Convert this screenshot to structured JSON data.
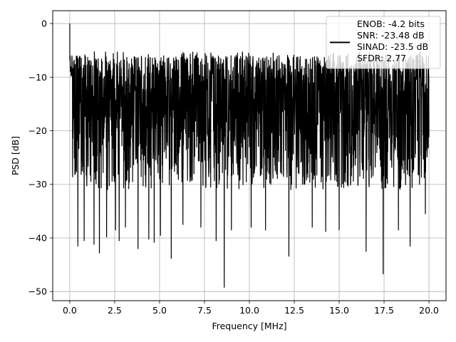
{
  "chart_data": {
    "type": "line",
    "title": "",
    "xlabel": "Frequency [MHz]",
    "ylabel": "PSD [dB]",
    "xlim": [
      -0.95,
      20.95
    ],
    "ylim": [
      -51.7,
      2.4
    ],
    "grid": true,
    "x_ticks": [
      0.0,
      2.5,
      5.0,
      7.5,
      10.0,
      12.5,
      15.0,
      17.5,
      20.0
    ],
    "x_tick_labels": [
      "0.0",
      "2.5",
      "5.0",
      "7.5",
      "10.0",
      "12.5",
      "15.0",
      "17.5",
      "20.0"
    ],
    "y_ticks": [
      0,
      -10,
      -20,
      -30,
      -40,
      -50
    ],
    "y_tick_labels": [
      "0",
      "−10",
      "−20",
      "−30",
      "−40",
      "−50"
    ],
    "legend": {
      "placement": "upper-right",
      "entries": [
        "ENOB: -4.2 bits",
        "SNR: -23.48 dB",
        "SINAD: -23.5 dB",
        "SFDR: 2.77"
      ]
    },
    "series": [
      {
        "color": "#000000",
        "x_range": [
          0,
          20
        ],
        "num_points": 2048,
        "seed": 7,
        "peak": [
          0.0,
          0.0
        ],
        "envelope": {
          "upper": -6.0,
          "median": -16.0,
          "lower": -31.0
        },
        "deep_notches": [
          [
            0.45,
            -41.5
          ],
          [
            0.8,
            -40.5
          ],
          [
            1.35,
            -41.2
          ],
          [
            1.65,
            -42.8
          ],
          [
            2.05,
            -39.8
          ],
          [
            2.55,
            -38.5
          ],
          [
            2.75,
            -40.5
          ],
          [
            3.1,
            -38.0
          ],
          [
            3.8,
            -42.0
          ],
          [
            4.4,
            -40.2
          ],
          [
            4.7,
            -40.8
          ],
          [
            5.05,
            -39.5
          ],
          [
            5.65,
            -43.8
          ],
          [
            6.3,
            -37.5
          ],
          [
            7.3,
            -38.0
          ],
          [
            8.15,
            -40.5
          ],
          [
            8.6,
            -49.2
          ],
          [
            9.0,
            -38.5
          ],
          [
            10.1,
            -38.0
          ],
          [
            10.9,
            -38.5
          ],
          [
            12.2,
            -43.4
          ],
          [
            13.5,
            -38.0
          ],
          [
            14.25,
            -38.8
          ],
          [
            15.0,
            -38.5
          ],
          [
            16.5,
            -42.5
          ],
          [
            17.45,
            -46.7
          ],
          [
            18.3,
            -38.5
          ],
          [
            18.95,
            -41.5
          ],
          [
            19.8,
            -35.5
          ]
        ]
      }
    ]
  }
}
